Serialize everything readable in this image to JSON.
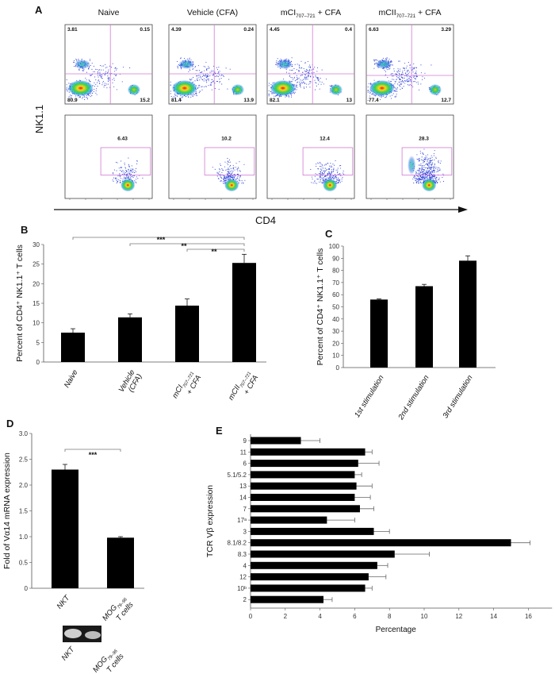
{
  "colors": {
    "bar": "#000000",
    "gate": "#d27ad6",
    "dot": "#2b3fd8",
    "axis": "#555555"
  },
  "panel_a": {
    "label": "A",
    "y_label": "NK1.1",
    "x_label": "CD4",
    "columns": [
      {
        "title": {
          "main": "Naive",
          "sub": "",
          "rest": ""
        },
        "quadrants": {
          "ul": "3.81",
          "ur": "0.15",
          "ll": "80.9",
          "lr": "15.2"
        },
        "gate": "6.43"
      },
      {
        "title": {
          "main": "Vehicle (CFA)",
          "sub": "",
          "rest": ""
        },
        "quadrants": {
          "ul": "4.39",
          "ur": "0.24",
          "ll": "81.4",
          "lr": "13.9"
        },
        "gate": "10.2"
      },
      {
        "title": {
          "main": "mCI",
          "sub": "707–721",
          "rest": " + CFA"
        },
        "quadrants": {
          "ul": "4.45",
          "ur": "0.4",
          "ll": "82.1",
          "lr": "13"
        },
        "gate": "12.4"
      },
      {
        "title": {
          "main": "mCII",
          "sub": "707–721",
          "rest": " + CFA"
        },
        "quadrants": {
          "ul": "6.63",
          "ur": "3.29",
          "ll": "77.4",
          "lr": "12.7"
        },
        "gate": "28.3"
      }
    ]
  },
  "chart_data": [
    {
      "panel": "B",
      "type": "bar",
      "ylabel": "Percent of CD4⁺ NK1.1⁺ T cells",
      "ylim": [
        0,
        30
      ],
      "yticks": [
        0,
        5,
        10,
        15,
        20,
        25,
        30
      ],
      "categories": [
        {
          "main": "Naive",
          "sub": "",
          "line2": ""
        },
        {
          "main": "Vehicle",
          "sub": "",
          "line2": "(CFA)"
        },
        {
          "main": "mCI",
          "sub": "707–721",
          "line2": "+ CFA"
        },
        {
          "main": "mCII",
          "sub": "707–721",
          "line2": "+ CFA"
        }
      ],
      "values": [
        7.5,
        11.4,
        14.4,
        25.3
      ],
      "errors": [
        1.0,
        0.9,
        1.7,
        2.2
      ],
      "significance": [
        {
          "from": 0,
          "to": 3,
          "label": "***"
        },
        {
          "from": 1,
          "to": 3,
          "label": "**"
        },
        {
          "from": 2,
          "to": 3,
          "label": "**"
        }
      ]
    },
    {
      "panel": "C",
      "type": "bar",
      "ylabel": "Percent of CD4⁺ NK1.1⁺ T cells",
      "ylim": [
        0,
        100
      ],
      "yticks": [
        0,
        10,
        20,
        30,
        40,
        50,
        60,
        70,
        80,
        90,
        100
      ],
      "categories": [
        {
          "main": "1st stimulation",
          "sub": "",
          "line2": ""
        },
        {
          "main": "2nd stimulation",
          "sub": "",
          "line2": ""
        },
        {
          "main": "3rd stimulation",
          "sub": "",
          "line2": ""
        }
      ],
      "values": [
        56,
        67,
        88
      ],
      "errors": [
        0.5,
        1.5,
        4
      ]
    },
    {
      "panel": "D",
      "type": "bar",
      "ylabel": "Fold of Vα14 mRNA expression",
      "ylim": [
        0,
        3.0
      ],
      "yticks": [
        "0",
        "0.5",
        "1.0",
        "1.5",
        "2.0",
        "2.5",
        "3.0"
      ],
      "categories": [
        {
          "main": "NKT",
          "sub": "",
          "line2": ""
        },
        {
          "main": "MOG",
          "sub": "79–96",
          "line2": "T cells"
        }
      ],
      "values": [
        2.3,
        0.98
      ],
      "errors": [
        0.1,
        0.02
      ],
      "significance": [
        {
          "from": 0,
          "to": 1,
          "label": "***"
        }
      ],
      "gel_labels": [
        {
          "main": "NKT",
          "sub": "",
          "line2": ""
        },
        {
          "main": "MOG",
          "sub": "79–96",
          "line2": "T cells"
        }
      ]
    },
    {
      "panel": "E",
      "type": "bar",
      "orientation": "horizontal",
      "ylabel": "TCR Vβ expression",
      "xlabel": "Percentage",
      "xlim": [
        0,
        17
      ],
      "xticks": [
        0,
        2,
        4,
        6,
        8,
        10,
        12,
        14,
        16
      ],
      "categories": [
        "9",
        "11",
        "6",
        "5.1/5.2",
        "13",
        "14",
        "7",
        "17ᵃ",
        "3",
        "8.1/8.2",
        "8.3",
        "4",
        "12",
        "10ᵇ",
        "2"
      ],
      "values": [
        2.9,
        6.6,
        6.2,
        6.0,
        6.1,
        6.0,
        6.3,
        4.4,
        7.1,
        15.0,
        8.3,
        7.3,
        6.8,
        6.6,
        4.2
      ],
      "errors": [
        1.1,
        0.4,
        1.2,
        0.4,
        0.9,
        0.9,
        0.8,
        1.6,
        0.9,
        1.1,
        2.0,
        0.6,
        1.0,
        0.4,
        0.5
      ]
    }
  ]
}
